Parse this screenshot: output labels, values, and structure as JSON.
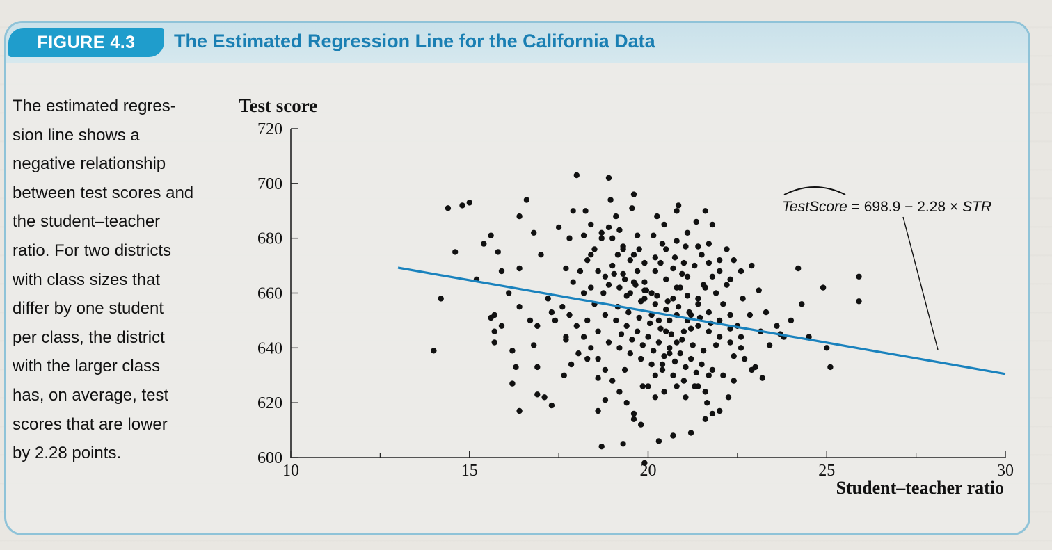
{
  "figure": {
    "label": "FIGURE 4.3",
    "title": "The Estimated Regression Line for the California Data"
  },
  "caption_lines": [
    "The estimated regres-",
    "sion line shows a",
    "negative relationship",
    "between test scores and",
    "the student–teacher",
    "ratio. For two districts",
    "with class sizes that",
    "differ by one student",
    "per class, the district",
    "with the larger class",
    "has, on average, test",
    "scores that are lower",
    "by 2.28 points."
  ],
  "colors": {
    "accent": "#1f9dcc",
    "title": "#1a7fb3",
    "regression_line": "#1a82bd",
    "points": "#111111"
  },
  "chart_data": {
    "type": "scatter",
    "xlabel": "Student–teacher ratio",
    "ylabel": "Test score",
    "xlim": [
      10,
      30
    ],
    "ylim": [
      600,
      720
    ],
    "xticks": [
      10,
      15,
      20,
      25,
      30
    ],
    "yticks": [
      600,
      620,
      640,
      660,
      680,
      700,
      720
    ],
    "grid": false,
    "annotation": {
      "text": "TestScore = 698.9 − 2.28 × STR",
      "points_to": "regression line near x = 28.3"
    },
    "regression_line": {
      "intercept": 698.9,
      "slope": -2.28,
      "x_range": [
        13,
        30
      ]
    },
    "series": [
      {
        "points": [
          [
            14.0,
            639
          ],
          [
            14.2,
            658
          ],
          [
            14.4,
            691
          ],
          [
            14.8,
            692
          ],
          [
            15.0,
            693
          ],
          [
            15.2,
            665
          ],
          [
            14.6,
            675
          ],
          [
            15.4,
            678
          ],
          [
            15.6,
            681
          ],
          [
            15.8,
            675
          ],
          [
            15.9,
            668
          ],
          [
            16.1,
            660
          ],
          [
            16.4,
            688
          ],
          [
            16.6,
            694
          ],
          [
            16.8,
            682
          ],
          [
            17.0,
            674
          ],
          [
            15.6,
            651
          ],
          [
            15.7,
            652
          ],
          [
            15.9,
            648
          ],
          [
            15.7,
            646
          ],
          [
            15.7,
            642
          ],
          [
            16.2,
            639
          ],
          [
            16.4,
            655
          ],
          [
            16.7,
            650
          ],
          [
            16.8,
            641
          ],
          [
            16.9,
            633
          ],
          [
            17.1,
            622
          ],
          [
            17.3,
            619
          ],
          [
            17.7,
            643
          ],
          [
            16.2,
            627
          ],
          [
            16.4,
            617
          ],
          [
            16.9,
            623
          ],
          [
            16.3,
            633
          ],
          [
            16.9,
            648
          ],
          [
            17.7,
            669
          ],
          [
            17.8,
            680
          ],
          [
            17.9,
            690
          ],
          [
            18.0,
            703
          ],
          [
            18.2,
            681
          ],
          [
            17.3,
            653
          ],
          [
            17.4,
            650
          ],
          [
            17.7,
            644
          ],
          [
            18.3,
            636
          ],
          [
            18.6,
            629
          ],
          [
            18.8,
            621
          ],
          [
            18.6,
            617
          ],
          [
            18.7,
            604
          ],
          [
            19.3,
            605
          ],
          [
            19.6,
            614
          ],
          [
            19.9,
            598
          ],
          [
            20.3,
            606
          ],
          [
            20.7,
            608
          ],
          [
            21.2,
            609
          ],
          [
            21.6,
            614
          ],
          [
            21.8,
            616
          ],
          [
            22.0,
            617
          ],
          [
            21.4,
            626
          ],
          [
            21.7,
            630
          ],
          [
            20.2,
            622
          ],
          [
            20.8,
            626
          ],
          [
            23.0,
            633
          ],
          [
            23.2,
            629
          ],
          [
            23.4,
            641
          ],
          [
            23.7,
            645
          ],
          [
            24.0,
            650
          ],
          [
            24.3,
            656
          ],
          [
            24.5,
            644
          ],
          [
            25.0,
            640
          ],
          [
            25.1,
            633
          ],
          [
            25.9,
            657
          ],
          [
            25.9,
            666
          ],
          [
            24.9,
            662
          ],
          [
            24.2,
            669
          ],
          [
            22.2,
            663
          ],
          [
            22.4,
            672
          ],
          [
            22.6,
            668
          ],
          [
            22.9,
            670
          ],
          [
            23.1,
            661
          ],
          [
            23.3,
            653
          ],
          [
            23.6,
            648
          ],
          [
            23.8,
            644
          ],
          [
            21.6,
            690
          ],
          [
            21.8,
            685
          ],
          [
            20.8,
            690
          ],
          [
            19.6,
            696
          ],
          [
            18.9,
            702
          ],
          [
            17.5,
            684
          ],
          [
            17.2,
            658
          ],
          [
            16.4,
            669
          ],
          [
            18.4,
            674
          ],
          [
            18.6,
            668
          ],
          [
            18.9,
            663
          ],
          [
            19.2,
            662
          ],
          [
            19.5,
            660
          ],
          [
            19.9,
            658
          ],
          [
            20.2,
            656
          ],
          [
            20.5,
            654
          ],
          [
            20.8,
            652
          ],
          [
            21.1,
            650
          ],
          [
            21.4,
            648
          ],
          [
            21.7,
            646
          ],
          [
            22.0,
            644
          ],
          [
            22.3,
            642
          ],
          [
            22.6,
            640
          ],
          [
            18.2,
            660
          ],
          [
            18.5,
            656
          ],
          [
            18.8,
            652
          ],
          [
            19.1,
            650
          ],
          [
            19.4,
            648
          ],
          [
            19.7,
            646
          ],
          [
            20.0,
            644
          ],
          [
            20.3,
            642
          ],
          [
            20.6,
            640
          ],
          [
            20.9,
            638
          ],
          [
            21.2,
            636
          ],
          [
            21.5,
            634
          ],
          [
            21.8,
            632
          ],
          [
            22.1,
            630
          ],
          [
            22.4,
            628
          ],
          [
            18.3,
            650
          ],
          [
            18.6,
            646
          ],
          [
            18.9,
            642
          ],
          [
            19.2,
            640
          ],
          [
            19.5,
            638
          ],
          [
            19.8,
            636
          ],
          [
            20.1,
            634
          ],
          [
            20.4,
            632
          ],
          [
            20.7,
            630
          ],
          [
            21.0,
            628
          ],
          [
            21.3,
            626
          ],
          [
            21.6,
            624
          ],
          [
            19.0,
            680
          ],
          [
            19.3,
            677
          ],
          [
            19.6,
            674
          ],
          [
            19.9,
            671
          ],
          [
            20.2,
            668
          ],
          [
            20.5,
            665
          ],
          [
            20.8,
            662
          ],
          [
            21.1,
            659
          ],
          [
            21.4,
            656
          ],
          [
            21.7,
            653
          ],
          [
            22.0,
            650
          ],
          [
            22.3,
            647
          ],
          [
            22.6,
            644
          ],
          [
            18.4,
            685
          ],
          [
            18.7,
            682
          ],
          [
            19.0,
            670
          ],
          [
            19.3,
            667
          ],
          [
            19.6,
            664
          ],
          [
            19.9,
            661
          ],
          [
            20.2,
            673
          ],
          [
            20.5,
            676
          ],
          [
            20.8,
            679
          ],
          [
            21.1,
            682
          ],
          [
            21.4,
            677
          ],
          [
            21.7,
            671
          ],
          [
            22.0,
            668
          ],
          [
            22.3,
            665
          ],
          [
            17.9,
            664
          ],
          [
            18.1,
            668
          ],
          [
            18.3,
            672
          ],
          [
            18.5,
            676
          ],
          [
            18.7,
            680
          ],
          [
            18.9,
            684
          ],
          [
            19.1,
            688
          ],
          [
            19.3,
            676
          ],
          [
            19.5,
            672
          ],
          [
            19.7,
            668
          ],
          [
            19.9,
            664
          ],
          [
            20.1,
            660
          ],
          [
            20.3,
            650
          ],
          [
            20.5,
            646
          ],
          [
            20.7,
            658
          ],
          [
            20.9,
            662
          ],
          [
            21.1,
            666
          ],
          [
            21.3,
            670
          ],
          [
            21.5,
            674
          ],
          [
            21.7,
            678
          ],
          [
            21.9,
            660
          ],
          [
            22.1,
            656
          ],
          [
            22.3,
            652
          ],
          [
            22.5,
            648
          ],
          [
            22.7,
            636
          ],
          [
            22.9,
            632
          ],
          [
            17.6,
            655
          ],
          [
            17.8,
            652
          ],
          [
            18.0,
            648
          ],
          [
            18.2,
            644
          ],
          [
            18.4,
            640
          ],
          [
            18.6,
            636
          ],
          [
            18.8,
            632
          ],
          [
            19.0,
            628
          ],
          [
            19.2,
            624
          ],
          [
            19.4,
            620
          ],
          [
            19.6,
            616
          ],
          [
            19.8,
            612
          ],
          [
            20.0,
            626
          ],
          [
            20.2,
            630
          ],
          [
            20.4,
            634
          ],
          [
            20.6,
            638
          ],
          [
            20.8,
            642
          ],
          [
            21.0,
            646
          ],
          [
            21.2,
            652
          ],
          [
            21.4,
            658
          ],
          [
            21.6,
            662
          ],
          [
            21.8,
            666
          ],
          [
            22.0,
            672
          ],
          [
            22.2,
            676
          ],
          [
            19.15,
            655
          ],
          [
            19.45,
            653
          ],
          [
            19.75,
            651
          ],
          [
            20.05,
            649
          ],
          [
            20.35,
            647
          ],
          [
            20.65,
            645
          ],
          [
            20.95,
            643
          ],
          [
            21.25,
            641
          ],
          [
            21.55,
            639
          ],
          [
            19.25,
            645
          ],
          [
            19.55,
            643
          ],
          [
            19.85,
            641
          ],
          [
            20.15,
            639
          ],
          [
            20.45,
            637
          ],
          [
            20.75,
            635
          ],
          [
            21.05,
            633
          ],
          [
            21.35,
            631
          ],
          [
            19.05,
            667
          ],
          [
            19.35,
            665
          ],
          [
            19.65,
            663
          ],
          [
            19.95,
            661
          ],
          [
            20.25,
            659
          ],
          [
            20.55,
            657
          ],
          [
            20.85,
            655
          ],
          [
            21.15,
            653
          ],
          [
            21.45,
            651
          ],
          [
            21.75,
            649
          ],
          [
            18.75,
            660
          ],
          [
            19.15,
            674
          ],
          [
            19.75,
            676
          ],
          [
            20.35,
            671
          ],
          [
            20.95,
            667
          ],
          [
            21.55,
            663
          ],
          [
            20.15,
            681
          ],
          [
            20.45,
            685
          ],
          [
            20.75,
            673
          ],
          [
            21.05,
            677
          ],
          [
            18.25,
            690
          ],
          [
            18.95,
            694
          ],
          [
            19.55,
            691
          ],
          [
            20.25,
            688
          ],
          [
            20.85,
            692
          ],
          [
            21.35,
            686
          ],
          [
            19.35,
            632
          ],
          [
            19.85,
            626
          ],
          [
            20.45,
            624
          ],
          [
            21.05,
            622
          ],
          [
            21.65,
            620
          ],
          [
            22.25,
            622
          ],
          [
            18.05,
            638
          ],
          [
            17.85,
            634
          ],
          [
            17.65,
            630
          ],
          [
            22.85,
            652
          ],
          [
            22.65,
            658
          ],
          [
            23.15,
            646
          ],
          [
            20.1,
            652
          ],
          [
            20.6,
            650
          ],
          [
            21.2,
            647
          ],
          [
            19.8,
            657
          ],
          [
            19.4,
            659
          ],
          [
            18.8,
            666
          ],
          [
            18.4,
            662
          ],
          [
            21.9,
            641
          ],
          [
            22.4,
            637
          ],
          [
            21.0,
            671
          ],
          [
            20.7,
            669
          ],
          [
            19.7,
            681
          ],
          [
            19.2,
            683
          ],
          [
            20.4,
            678
          ]
        ]
      }
    ]
  }
}
